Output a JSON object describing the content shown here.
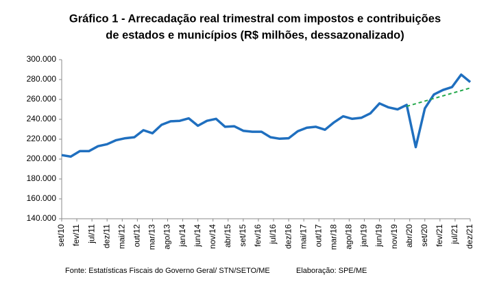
{
  "chart_data": {
    "type": "line",
    "title": "Gráfico 1 - Arrecadação real trimestral com impostos e contribuições",
    "subtitle": "de estados e municípios (R$ milhões, dessazonalizado)",
    "source": "Fonte:  Estatísticas Fiscais do Governo Geral/ STN/SETO/ME",
    "credit": "Elaboração: SPE/ME",
    "categories": [
      "set/10",
      "fev/11",
      "jul/11",
      "dez/11",
      "mai/12",
      "out/12",
      "mar/13",
      "ago/13",
      "jan/14",
      "jun/14",
      "nov/14",
      "abr/15",
      "set/15",
      "fev/16",
      "jul/16",
      "dez/16",
      "mai/17",
      "out/17",
      "mar/18",
      "ago/18",
      "jan/19",
      "jun/19",
      "nov/19",
      "abr/20",
      "set/20",
      "fev/21",
      "jul/21",
      "dez/21"
    ],
    "series": [
      {
        "color": "#1f6fbf",
        "width": 3.5,
        "x": [
          "set/10",
          "dez/10",
          "mar/11",
          "jun/11",
          "set/11",
          "dez/11",
          "mar/12",
          "jun/12",
          "set/12",
          "dez/12",
          "mar/13",
          "jun/13",
          "set/13",
          "dez/13",
          "mar/14",
          "jun/14",
          "set/14",
          "dez/14",
          "mar/15",
          "jun/15",
          "set/15",
          "dez/15",
          "mar/16",
          "jun/16",
          "set/16",
          "dez/16",
          "mar/17",
          "jun/17",
          "set/17",
          "dez/17",
          "mar/18",
          "jun/18",
          "set/18",
          "dez/18",
          "mar/19",
          "jun/19",
          "set/19",
          "dez/19",
          "mar/20",
          "jun/20",
          "set/20",
          "dez/20",
          "mar/21",
          "jun/21",
          "set/21",
          "dez/21"
        ],
        "values": [
          204000,
          202500,
          208000,
          208000,
          213000,
          215000,
          219000,
          221000,
          222000,
          229000,
          226000,
          234500,
          238000,
          238500,
          241000,
          233500,
          238500,
          240500,
          232500,
          233000,
          228500,
          227500,
          227500,
          222000,
          220500,
          221000,
          228000,
          231500,
          232500,
          229500,
          237000,
          243000,
          240500,
          241500,
          246000,
          256000,
          252000,
          250000,
          254500,
          212000,
          251000,
          265000,
          269500,
          272500,
          285000,
          277500
        ]
      },
      {
        "color": "#22a84a",
        "width": 2,
        "dashed": true,
        "x": [
          "mar/20",
          "dez/21"
        ],
        "values": [
          253000,
          271500
        ]
      }
    ],
    "ylim": [
      140000,
      300000
    ],
    "yticks": [
      {
        "value": 140000,
        "label": "140.000"
      },
      {
        "value": 160000,
        "label": "160.000"
      },
      {
        "value": 180000,
        "label": "180.000"
      },
      {
        "value": 200000,
        "label": "200.000"
      },
      {
        "value": 220000,
        "label": "220.000"
      },
      {
        "value": 240000,
        "label": "240.000"
      },
      {
        "value": 260000,
        "label": "260.000"
      },
      {
        "value": 280000,
        "label": "280.000"
      },
      {
        "value": 300000,
        "label": "300.000"
      }
    ],
    "grid": false
  }
}
